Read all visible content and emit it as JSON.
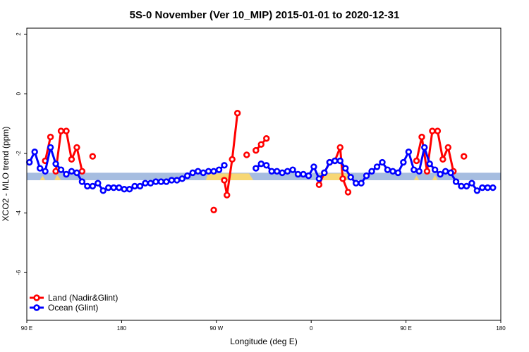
{
  "chart_data": {
    "type": "line",
    "title": "5S-0 November (Ver 10_MIP)   2015-01-01 to 2020-12-31",
    "xlabel": "Longitude (deg E)",
    "ylabel": "XCO2 - MLO trend (ppm)",
    "xlim": [
      90,
      450
    ],
    "ylim": [
      -7.6,
      2.2
    ],
    "x_ticks": [
      {
        "value": 90,
        "label": "90 E"
      },
      {
        "value": 162,
        "label": "180"
      },
      {
        "value": 234,
        "label": "90 W"
      },
      {
        "value": 306,
        "label": "0"
      },
      {
        "value": 378,
        "label": "90 E"
      },
      {
        "value": 450,
        "label": "180"
      }
    ],
    "y_ticks": [
      {
        "value": 2,
        "label": "2"
      },
      {
        "value": 0,
        "label": "0"
      },
      {
        "value": -2,
        "label": "-2"
      },
      {
        "value": -4,
        "label": "-4"
      },
      {
        "value": -6,
        "label": "-6"
      }
    ],
    "band": {
      "ymin": -2.9,
      "ymax": -2.65,
      "color": "#a6bde0"
    },
    "land_band": {
      "color": "#f7d774",
      "segments": [
        [
          [
            100,
            -2.9
          ],
          [
            102,
            -2.75
          ],
          [
            104,
            -2.9
          ]
        ],
        [
          [
            111,
            -2.9
          ],
          [
            113,
            -2.72
          ],
          [
            116,
            -2.9
          ]
        ],
        [
          [
            226,
            -2.9
          ],
          [
            262,
            -2.9
          ]
        ],
        [
          [
            311,
            -2.9
          ],
          [
            339,
            -2.9
          ]
        ],
        [
          [
            384,
            -2.9
          ],
          [
            386,
            -2.75
          ],
          [
            388,
            -2.9
          ]
        ],
        [
          [
            398,
            -2.9
          ],
          [
            400,
            -2.72
          ],
          [
            402,
            -2.9
          ]
        ]
      ]
    },
    "grid": false,
    "legend_position": "bottom-left",
    "series": [
      {
        "name": "Land (Nadir&Glint)",
        "color": "#ff0000",
        "segments": [
          [
            [
              104,
              -2.25
            ],
            [
              108,
              -1.45
            ]
          ],
          [
            [
              112,
              -2.6
            ],
            [
              116,
              -1.25
            ],
            [
              120,
              -1.25
            ],
            [
              124,
              -2.2
            ],
            [
              128,
              -1.8
            ],
            [
              132,
              -2.6
            ]
          ],
          [
            [
              140,
              -2.1
            ]
          ],
          [
            [
              232,
              -3.9
            ]
          ],
          [
            [
              240,
              -2.9
            ],
            [
              242,
              -3.4
            ],
            [
              246,
              -2.2
            ],
            [
              250,
              -0.65
            ]
          ],
          [
            [
              257,
              -2.05
            ]
          ],
          [
            [
              264,
              -1.9
            ],
            [
              268,
              -1.7
            ],
            [
              272,
              -1.5
            ]
          ],
          [
            [
              312,
              -3.05
            ],
            [
              316,
              -2.65
            ],
            [
              320,
              -2.3
            ],
            [
              324,
              -2.25
            ],
            [
              328,
              -1.8
            ],
            [
              330,
              -2.85
            ],
            [
              334,
              -3.3
            ]
          ],
          [
            [
              386,
              -2.25
            ],
            [
              390,
              -1.45
            ],
            [
              394,
              -2.6
            ],
            [
              398,
              -1.25
            ],
            [
              402,
              -1.25
            ],
            [
              406,
              -2.2
            ],
            [
              410,
              -1.8
            ],
            [
              414,
              -2.6
            ]
          ],
          [
            [
              422,
              -2.1
            ]
          ]
        ]
      },
      {
        "name": "Ocean (Glint)",
        "color": "#0000ff",
        "segments": [
          [
            [
              92,
              -2.3
            ],
            [
              96,
              -1.95
            ],
            [
              100,
              -2.5
            ],
            [
              104,
              -2.6
            ],
            [
              108,
              -1.8
            ],
            [
              112,
              -2.35
            ],
            [
              116,
              -2.55
            ],
            [
              120,
              -2.7
            ],
            [
              124,
              -2.6
            ],
            [
              128,
              -2.65
            ],
            [
              132,
              -2.95
            ],
            [
              136,
              -3.1
            ],
            [
              140,
              -3.1
            ],
            [
              144,
              -3.0
            ],
            [
              148,
              -3.25
            ],
            [
              152,
              -3.15
            ],
            [
              156,
              -3.15
            ],
            [
              160,
              -3.15
            ],
            [
              164,
              -3.2
            ],
            [
              168,
              -3.2
            ],
            [
              172,
              -3.1
            ],
            [
              176,
              -3.1
            ],
            [
              180,
              -3.0
            ],
            [
              184,
              -3.0
            ],
            [
              188,
              -2.95
            ],
            [
              192,
              -2.95
            ],
            [
              196,
              -2.95
            ],
            [
              200,
              -2.9
            ],
            [
              204,
              -2.9
            ],
            [
              208,
              -2.85
            ],
            [
              212,
              -2.75
            ],
            [
              216,
              -2.65
            ],
            [
              220,
              -2.6
            ],
            [
              224,
              -2.65
            ],
            [
              228,
              -2.6
            ],
            [
              232,
              -2.6
            ],
            [
              236,
              -2.55
            ],
            [
              240,
              -2.4
            ]
          ],
          [
            [
              264,
              -2.5
            ],
            [
              268,
              -2.35
            ],
            [
              272,
              -2.4
            ],
            [
              276,
              -2.6
            ],
            [
              280,
              -2.6
            ],
            [
              284,
              -2.65
            ],
            [
              288,
              -2.6
            ],
            [
              292,
              -2.55
            ],
            [
              296,
              -2.7
            ],
            [
              300,
              -2.7
            ],
            [
              304,
              -2.75
            ],
            [
              308,
              -2.45
            ],
            [
              312,
              -2.85
            ],
            [
              316,
              -2.65
            ],
            [
              320,
              -2.3
            ],
            [
              324,
              -2.25
            ],
            [
              328,
              -2.25
            ],
            [
              332,
              -2.5
            ],
            [
              336,
              -2.8
            ],
            [
              340,
              -3.0
            ],
            [
              344,
              -3.0
            ],
            [
              348,
              -2.75
            ],
            [
              352,
              -2.6
            ],
            [
              356,
              -2.45
            ],
            [
              360,
              -2.3
            ],
            [
              364,
              -2.55
            ],
            [
              368,
              -2.6
            ],
            [
              372,
              -2.65
            ],
            [
              376,
              -2.3
            ],
            [
              380,
              -1.95
            ],
            [
              384,
              -2.55
            ],
            [
              388,
              -2.6
            ],
            [
              392,
              -1.8
            ],
            [
              396,
              -2.35
            ],
            [
              400,
              -2.55
            ],
            [
              404,
              -2.7
            ],
            [
              408,
              -2.6
            ],
            [
              412,
              -2.65
            ],
            [
              416,
              -2.95
            ],
            [
              420,
              -3.1
            ],
            [
              424,
              -3.1
            ],
            [
              428,
              -3.0
            ],
            [
              432,
              -3.25
            ],
            [
              436,
              -3.15
            ],
            [
              440,
              -3.15
            ],
            [
              444,
              -3.15
            ]
          ]
        ]
      }
    ]
  }
}
